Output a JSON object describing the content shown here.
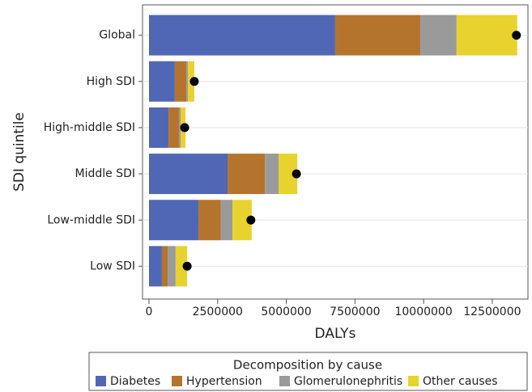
{
  "chart_data": {
    "type": "bar",
    "orientation": "horizontal",
    "stacked": true,
    "x_label": "DALYs",
    "y_label": "SDI quintile",
    "legend_title": "Decomposition by cause",
    "categories": [
      "Global",
      "High SDI",
      "High-middle SDI",
      "Middle SDI",
      "Low-middle SDI",
      "Low SDI"
    ],
    "series": [
      {
        "name": "Diabetes",
        "color": "#4f67b5",
        "values": [
          6780000,
          940000,
          710000,
          2860000,
          1800000,
          470000
        ]
      },
      {
        "name": "Hypertension",
        "color": "#b5742d",
        "values": [
          3100000,
          420000,
          380000,
          1360000,
          820000,
          210000
        ]
      },
      {
        "name": "Glomerulonephritis",
        "color": "#9a9a9a",
        "values": [
          1320000,
          60000,
          60000,
          500000,
          420000,
          290000
        ]
      },
      {
        "name": "Other causes",
        "color": "#e8d22d",
        "values": [
          2210000,
          230000,
          180000,
          680000,
          700000,
          420000
        ]
      }
    ],
    "markers": {
      "color": "#000000",
      "values": [
        13380000,
        1650000,
        1300000,
        5370000,
        3710000,
        1390000
      ]
    },
    "xlim": [
      -236000,
      13800000
    ],
    "xticks": [
      0,
      2500000,
      5000000,
      7500000,
      10000000,
      12500000
    ],
    "legend_position": "bottom"
  }
}
